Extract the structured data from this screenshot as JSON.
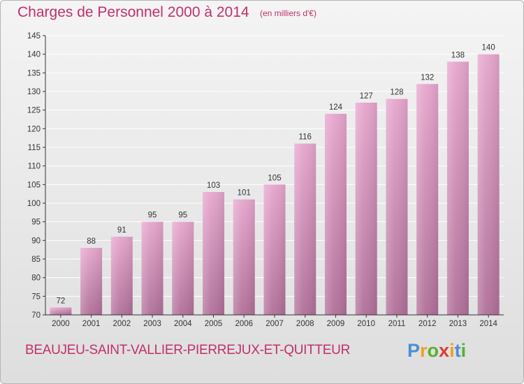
{
  "title": "Charges de Personnel 2000 à 2014",
  "subtitle": "(en milliers d'€)",
  "city": "BEAUJEU-SAINT-VALLIER-PIERREJUX-ET-QUITTEUR",
  "logo": {
    "letters": [
      "P",
      "r",
      "o",
      "x",
      "i",
      "t",
      "i"
    ],
    "colors": [
      "#4a8fd6",
      "#f0a020",
      "#58b030",
      "#e03a3a",
      "#f0a020",
      "#4a8fd6",
      "#58b030"
    ]
  },
  "colors": {
    "bar_top": "#e6a6cd",
    "bar_bottom": "#b06f98",
    "text": "#c0306a",
    "grid": "#ffffff",
    "axis": "#333333"
  },
  "chart_data": {
    "type": "bar",
    "title": "Charges de Personnel 2000 à 2014",
    "xlabel": "",
    "ylabel": "",
    "ylim": [
      70,
      145
    ],
    "yticks": [
      70,
      75,
      80,
      85,
      90,
      95,
      100,
      105,
      110,
      115,
      120,
      125,
      130,
      135,
      140,
      145
    ],
    "grid": true,
    "categories": [
      "2000",
      "2001",
      "2002",
      "2003",
      "2004",
      "2005",
      "2006",
      "2007",
      "2008",
      "2009",
      "2010",
      "2011",
      "2012",
      "2013",
      "2014"
    ],
    "values": [
      72,
      88,
      91,
      95,
      95,
      103,
      101,
      105,
      116,
      124,
      127,
      128,
      132,
      138,
      140
    ]
  }
}
